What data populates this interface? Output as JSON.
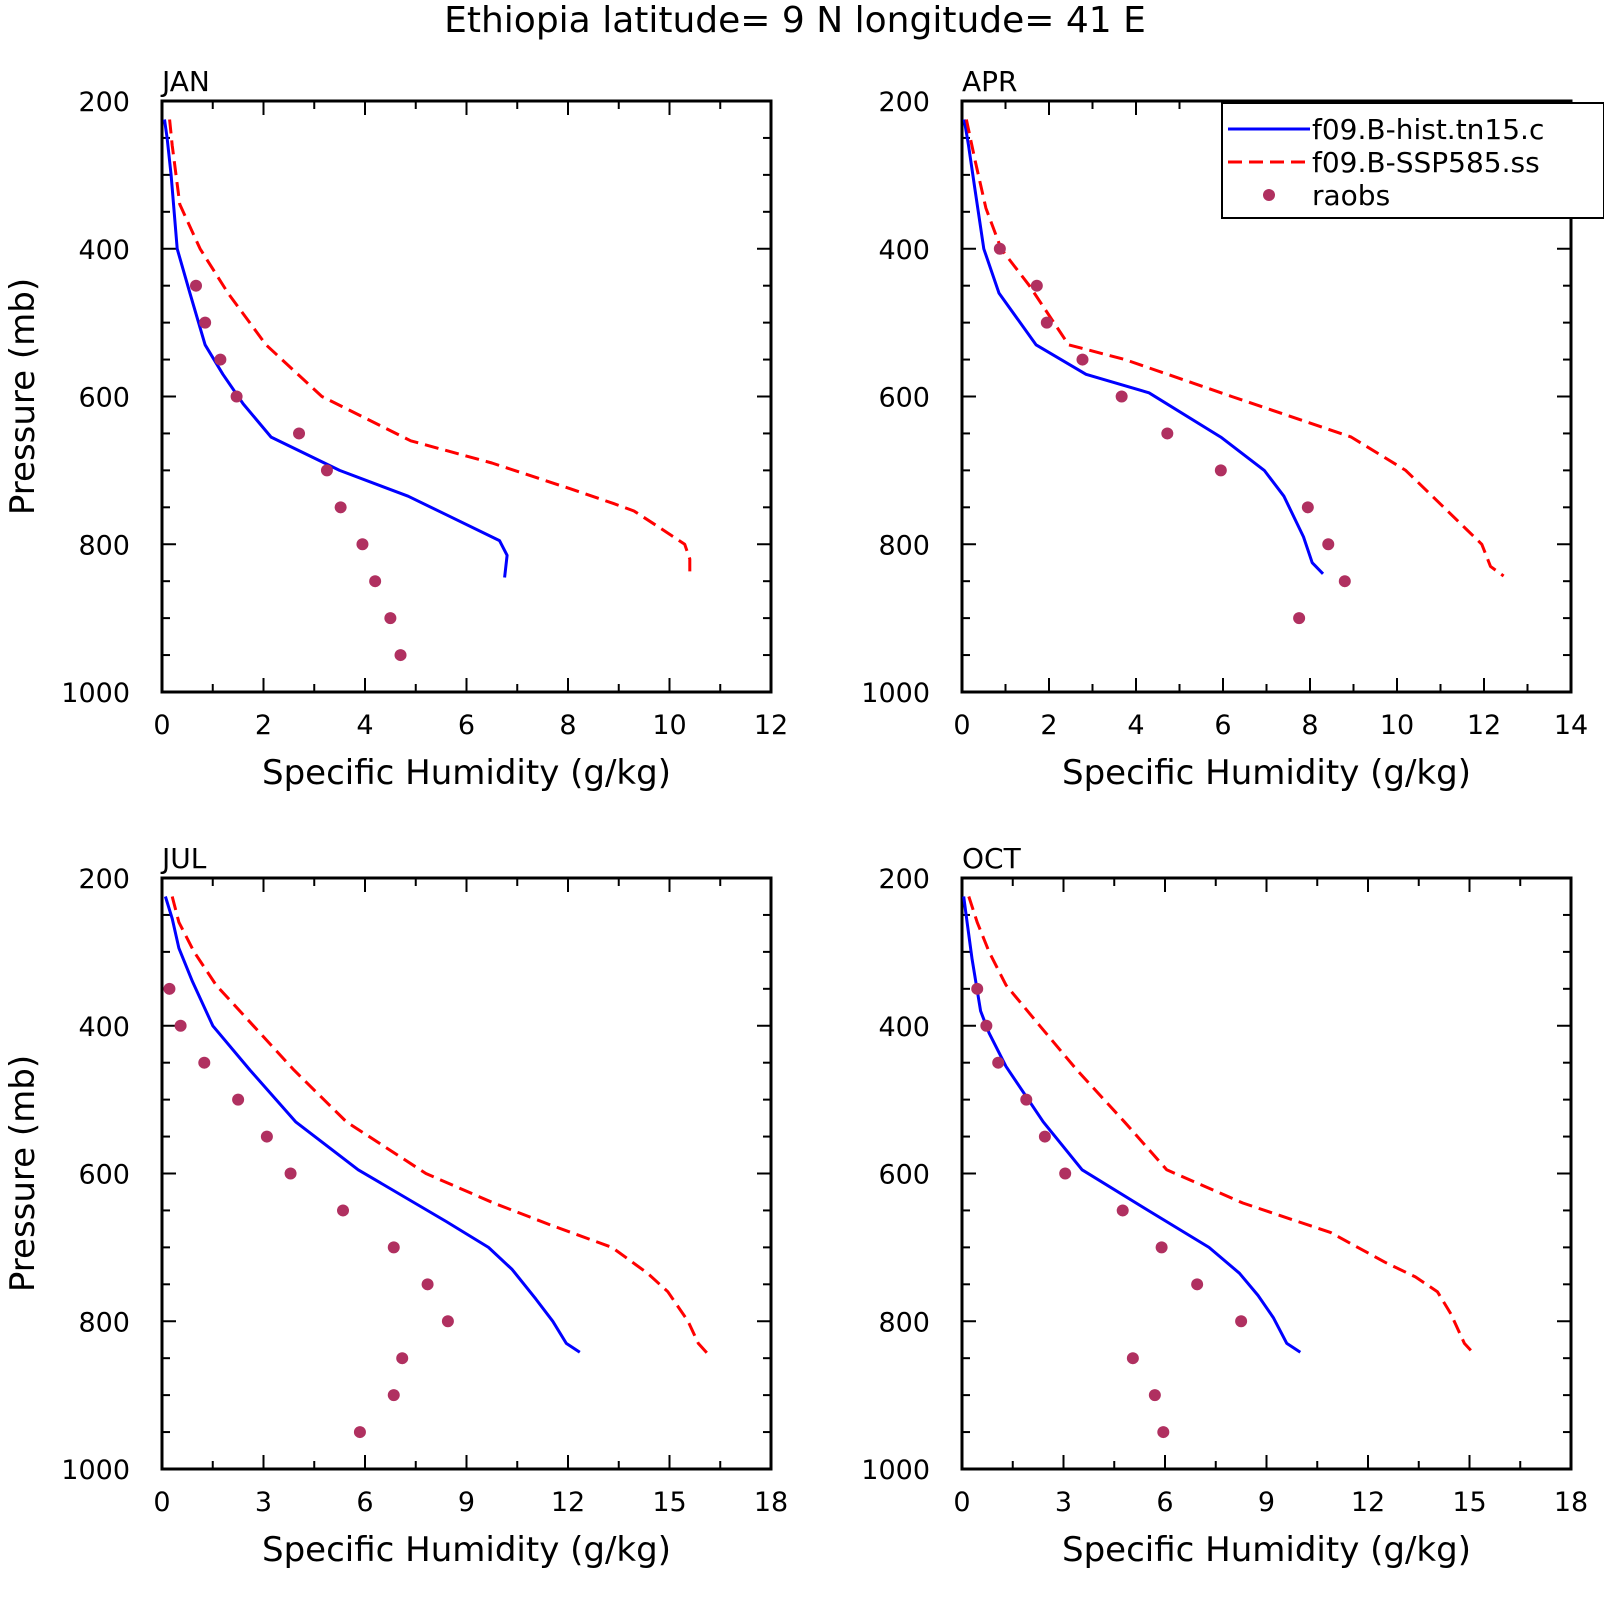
{
  "title": "Ethiopia  latitude= 9 N longitude= 41 E",
  "colors": {
    "hist": "#0000ff",
    "ssp": "#ff0000",
    "raobs": "#b03060",
    "frame": "#000000"
  },
  "legend": {
    "entries": [
      {
        "label": "f09.B-hist.tn15.c",
        "style": "solid-line",
        "color": "#0000ff"
      },
      {
        "label": "f09.B-SSP585.ss",
        "style": "dashed-line",
        "color": "#ff0000"
      },
      {
        "label": "raobs",
        "style": "dot",
        "color": "#b03060"
      }
    ],
    "placement": "top-right of APR panel"
  },
  "chart_data": [
    {
      "type": "line",
      "panel_title": "JAN",
      "xlabel": "Specific Humidity (g/kg)",
      "ylabel": "Pressure (mb)",
      "xlim": [
        0,
        12
      ],
      "ylim": [
        200,
        1000
      ],
      "y_inverted": true,
      "xticks": [
        0,
        2,
        4,
        6,
        8,
        10,
        12
      ],
      "yticks": [
        200,
        400,
        600,
        800,
        1000
      ],
      "series": [
        {
          "name": "f09.B-hist.tn15.c",
          "x": [
            0.05,
            0.1,
            0.18,
            0.3,
            0.55,
            0.85,
            1.2,
            1.6,
            2.15,
            3.5,
            4.85,
            5.6,
            6.65,
            6.8,
            6.75
          ],
          "y": [
            225,
            250,
            300,
            400,
            460,
            530,
            570,
            610,
            655,
            700,
            735,
            760,
            795,
            815,
            845
          ]
        },
        {
          "name": "f09.B-SSP585.ss",
          "x": [
            0.15,
            0.2,
            0.35,
            0.75,
            1.3,
            2.05,
            3.15,
            4.9,
            6.5,
            8.05,
            8.9,
            9.3,
            9.75,
            10.3,
            10.4,
            10.4
          ],
          "y": [
            225,
            260,
            340,
            400,
            460,
            530,
            600,
            660,
            690,
            725,
            745,
            755,
            775,
            800,
            820,
            845
          ]
        },
        {
          "name": "raobs",
          "x": [
            0.67,
            0.85,
            1.15,
            1.47,
            2.7,
            3.25,
            3.52,
            3.95,
            4.2,
            4.5,
            4.7
          ],
          "y": [
            450,
            500,
            550,
            600,
            650,
            700,
            750,
            800,
            850,
            900,
            950
          ]
        }
      ]
    },
    {
      "type": "line",
      "panel_title": "APR",
      "xlabel": "Specific Humidity (g/kg)",
      "ylabel": "",
      "xlim": [
        0,
        14
      ],
      "ylim": [
        200,
        1000
      ],
      "y_inverted": true,
      "xticks": [
        0,
        2,
        4,
        6,
        8,
        10,
        12,
        14
      ],
      "yticks": [
        200,
        400,
        600,
        800,
        1000
      ],
      "series": [
        {
          "name": "f09.B-hist.tn15.c",
          "x": [
            0.05,
            0.15,
            0.3,
            0.5,
            0.85,
            1.7,
            2.85,
            4.3,
            5.95,
            6.95,
            7.4,
            7.85,
            8.05,
            8.3
          ],
          "y": [
            225,
            260,
            320,
            400,
            460,
            530,
            570,
            595,
            655,
            700,
            735,
            790,
            825,
            840
          ]
        },
        {
          "name": "f09.B-SSP585.ss",
          "x": [
            0.1,
            0.3,
            0.55,
            0.9,
            1.55,
            2.45,
            3.75,
            6.2,
            8.95,
            10.2,
            10.9,
            11.6,
            11.95,
            12.15,
            12.45
          ],
          "y": [
            225,
            280,
            345,
            400,
            450,
            530,
            550,
            600,
            655,
            700,
            740,
            780,
            800,
            830,
            843
          ]
        },
        {
          "name": "raobs",
          "x": [
            0.87,
            1.72,
            1.95,
            2.77,
            3.67,
            4.72,
            5.95,
            7.95,
            8.42,
            8.8,
            7.75
          ],
          "y": [
            400,
            450,
            500,
            550,
            600,
            650,
            700,
            750,
            800,
            850,
            900
          ]
        }
      ]
    },
    {
      "type": "line",
      "panel_title": "JUL",
      "xlabel": "Specific Humidity (g/kg)",
      "ylabel": "Pressure (mb)",
      "xlim": [
        0,
        18
      ],
      "ylim": [
        200,
        1000
      ],
      "y_inverted": true,
      "xticks": [
        0,
        3,
        6,
        9,
        12,
        15,
        18
      ],
      "yticks": [
        200,
        400,
        600,
        800,
        1000
      ],
      "series": [
        {
          "name": "f09.B-hist.tn15.c",
          "x": [
            0.1,
            0.3,
            0.5,
            0.9,
            1.5,
            2.6,
            3.95,
            5.8,
            8.4,
            9.65,
            10.35,
            11.05,
            11.55,
            11.95,
            12.35
          ],
          "y": [
            225,
            255,
            295,
            340,
            400,
            460,
            530,
            595,
            665,
            700,
            730,
            770,
            800,
            830,
            842
          ]
        },
        {
          "name": "f09.B-SSP585.ss",
          "x": [
            0.3,
            0.5,
            0.95,
            1.6,
            2.7,
            3.9,
            5.45,
            7.8,
            9.8,
            11.5,
            13.3,
            14.35,
            14.95,
            15.55,
            15.85,
            16.15
          ],
          "y": [
            225,
            260,
            300,
            345,
            400,
            460,
            530,
            600,
            640,
            670,
            700,
            735,
            760,
            800,
            830,
            845
          ]
        },
        {
          "name": "raobs",
          "x": [
            0.22,
            0.55,
            1.25,
            2.25,
            3.1,
            3.8,
            5.35,
            6.85,
            7.85,
            8.45,
            7.1,
            6.85,
            5.85
          ],
          "y": [
            350,
            400,
            450,
            500,
            550,
            600,
            650,
            700,
            750,
            800,
            850,
            900,
            950
          ]
        }
      ]
    },
    {
      "type": "line",
      "panel_title": "OCT",
      "xlabel": "Specific Humidity (g/kg)",
      "ylabel": "",
      "xlim": [
        0,
        18
      ],
      "ylim": [
        200,
        1000
      ],
      "y_inverted": true,
      "xticks": [
        0,
        3,
        6,
        9,
        12,
        15,
        18
      ],
      "yticks": [
        200,
        400,
        600,
        800,
        1000
      ],
      "series": [
        {
          "name": "f09.B-hist.tn15.c",
          "x": [
            0.05,
            0.15,
            0.3,
            0.55,
            0.8,
            1.3,
            2.4,
            3.55,
            5.5,
            7.3,
            8.2,
            8.75,
            9.2,
            9.6,
            10.0
          ],
          "y": [
            225,
            260,
            310,
            380,
            410,
            455,
            530,
            595,
            650,
            700,
            735,
            765,
            795,
            830,
            842
          ]
        },
        {
          "name": "f09.B-SSP585.ss",
          "x": [
            0.2,
            0.45,
            0.8,
            1.3,
            2.3,
            3.4,
            4.8,
            6.05,
            8.3,
            10.9,
            12.5,
            13.4,
            14.05,
            14.45,
            14.85,
            15.15
          ],
          "y": [
            225,
            260,
            300,
            345,
            400,
            460,
            530,
            595,
            640,
            680,
            720,
            740,
            760,
            790,
            830,
            845
          ]
        },
        {
          "name": "raobs",
          "x": [
            0.45,
            0.72,
            1.07,
            1.9,
            2.45,
            3.05,
            4.75,
            5.9,
            6.95,
            8.25,
            5.05,
            5.7,
            5.95
          ],
          "y": [
            350,
            400,
            450,
            500,
            550,
            600,
            650,
            700,
            750,
            800,
            850,
            900,
            950
          ]
        }
      ]
    }
  ]
}
